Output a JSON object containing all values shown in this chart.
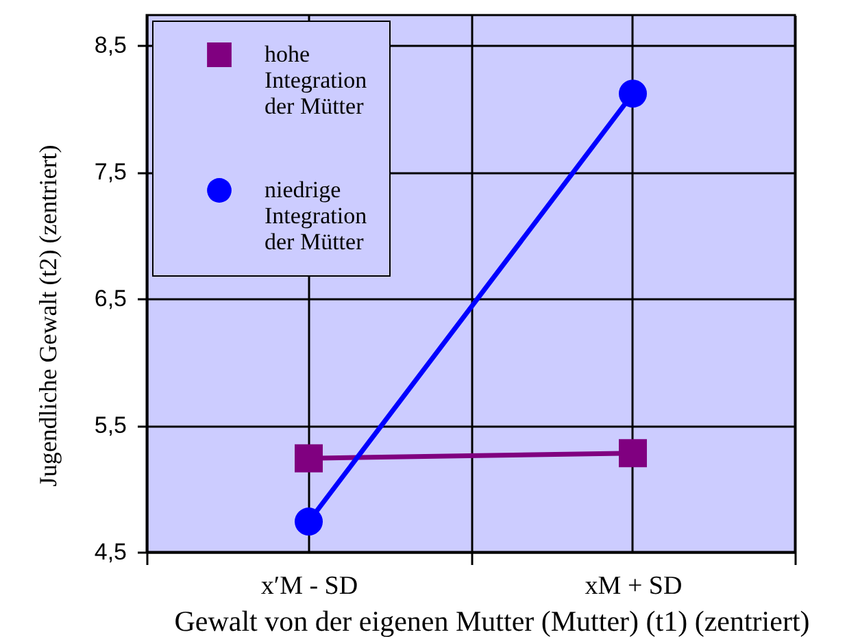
{
  "chart_data": {
    "type": "line",
    "xlabel": "Gewalt von der eigenen Mutter (Mutter) (t1) (zentriert)",
    "ylabel": "Jugendliche Gewalt (t2) (zentriert)",
    "categories": [
      "x′M - SD",
      "xM + SD"
    ],
    "series": [
      {
        "name": "hohe Integration der Mütter",
        "color": "#800080",
        "marker": "square",
        "values": [
          5.24,
          5.28
        ]
      },
      {
        "name": "niedrige Integration der Mütter",
        "color": "#0000ff",
        "marker": "circle",
        "values": [
          4.74,
          8.12
        ]
      }
    ],
    "ylim": [
      4.5,
      8.74
    ],
    "yticks": [
      {
        "value": 4.5,
        "label": "4,5"
      },
      {
        "value": 5.5,
        "label": "5,5"
      },
      {
        "value": 6.5,
        "label": "6,5"
      },
      {
        "value": 7.5,
        "label": "7,5"
      },
      {
        "value": 8.5,
        "label": "8,5"
      }
    ],
    "grid": true,
    "legend": "top left",
    "line_style": "solid"
  }
}
